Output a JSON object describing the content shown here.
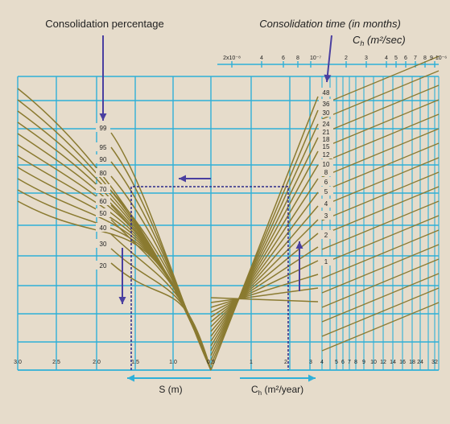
{
  "header": {
    "consolidation_percentage": "Consolidation percentage",
    "consolidation_time": "Consolidation time (in months)",
    "ch_top_main": "C",
    "ch_top_sub": "h",
    "ch_top_units": " (m²/sec)"
  },
  "top_axis_ticks": [
    "2x10⁻⁸",
    "4",
    "6",
    "8",
    "10⁻⁷",
    "2",
    "3",
    "4",
    "5",
    "6",
    "7",
    "8",
    "9",
    "10⁻⁶"
  ],
  "percent_labels": [
    "99",
    "95",
    "90",
    "80",
    "70",
    "60",
    "50",
    "40",
    "30",
    "20"
  ],
  "month_labels": [
    "48",
    "36",
    "30",
    "24",
    "21",
    "18",
    "15",
    "12",
    "10",
    "8",
    "6",
    "5",
    "4",
    "3",
    "2",
    "1"
  ],
  "s_axis_ticks": [
    "3.0",
    "2.5",
    "2.0",
    "1.5",
    "1.0",
    "0.5"
  ],
  "ch_axis_ticks": [
    "1",
    "2",
    "3",
    "4",
    "5",
    "6",
    "7",
    "8",
    "9",
    "10",
    "12",
    "14",
    "16",
    "18",
    "24",
    "32"
  ],
  "bottom": {
    "s_label": "S (m)",
    "ch_label_main": "C",
    "ch_label_sub": "h",
    "ch_label_units": " (m²/year)"
  },
  "colors": {
    "background": "#e6dccb",
    "grid": "#2fb0d8",
    "curve": "#8a7a30",
    "arrow": "#4a3fa0",
    "axis_arrow": "#2fb0d8"
  }
}
